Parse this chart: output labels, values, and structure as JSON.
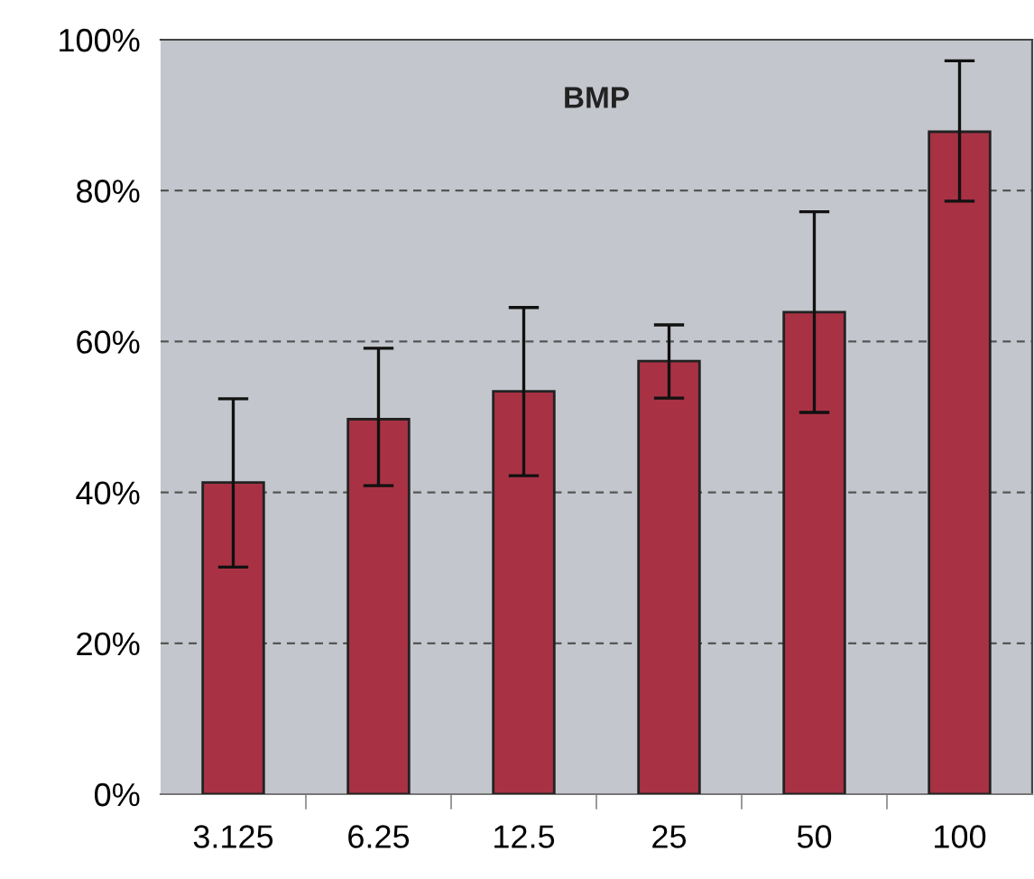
{
  "chart_data": {
    "type": "bar",
    "title": "BMP",
    "categories": [
      "3.125",
      "6.25",
      "12.5",
      "25",
      "50",
      "100"
    ],
    "values": [
      41.3,
      49.7,
      53.4,
      57.4,
      63.9,
      87.8
    ],
    "errors": [
      [
        30.1,
        52.4
      ],
      [
        40.9,
        59.1
      ],
      [
        42.2,
        64.5
      ],
      [
        52.5,
        62.2
      ],
      [
        50.6,
        77.2
      ],
      [
        78.6,
        97.2
      ]
    ],
    "color": "#a83244",
    "ylim": [
      0,
      100
    ],
    "yticks": [
      {
        "value": 0,
        "label": "0%"
      },
      {
        "value": 20,
        "label": "20%"
      },
      {
        "value": 40,
        "label": "40%"
      },
      {
        "value": 60,
        "label": "60%"
      },
      {
        "value": 80,
        "label": "80%"
      },
      {
        "value": 100,
        "label": "100%"
      }
    ],
    "grid": "y",
    "legend": false
  }
}
